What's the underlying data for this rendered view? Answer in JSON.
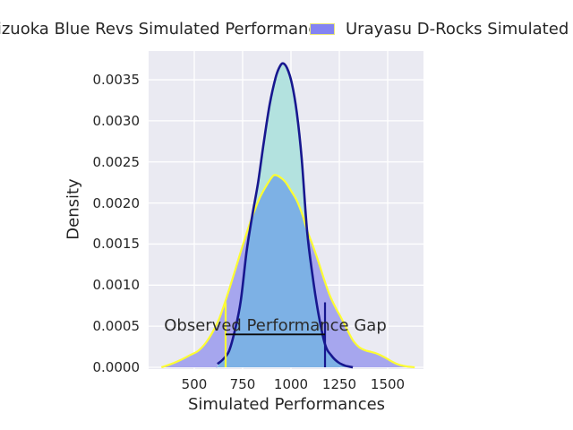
{
  "figure": {
    "background": "#ffffff",
    "plot_background": "#eaeaf2",
    "grid_color": "#ffffff",
    "text_color": "#262626"
  },
  "legend": {
    "entries": [
      {
        "label": "Shizuoka Blue Revs Simulated Performances",
        "swatch_fill": "#b3e2df",
        "swatch_edge": "#17178f"
      },
      {
        "label": "Urayasu D-Rocks Simulated Performances",
        "swatch_fill": "#8383f2",
        "swatch_edge": "#ebe87e"
      }
    ]
  },
  "axes": {
    "xlabel": "Simulated Performances",
    "ylabel": "Density",
    "x_tick_labels": [
      "500",
      "750",
      "1000",
      "1250",
      "1500"
    ],
    "y_tick_labels": [
      "0.0000",
      "0.0005",
      "0.0010",
      "0.0015",
      "0.0020",
      "0.0025",
      "0.0030",
      "0.0035"
    ]
  },
  "chart_data": {
    "type": "area",
    "subtype": "kde-density",
    "title": "",
    "xlabel": "Simulated Performances",
    "ylabel": "Density",
    "xlim": [
      265,
      1685
    ],
    "ylim": [
      0,
      0.00385
    ],
    "x_ticks": [
      500,
      750,
      1000,
      1250,
      1500
    ],
    "y_ticks": [
      0.0,
      0.0005,
      0.001,
      0.0015,
      0.002,
      0.0025,
      0.003,
      0.0035
    ],
    "grid": true,
    "legend_position": "top-outside",
    "series": [
      {
        "name": "Shizuoka Blue Revs Simulated Performances",
        "line_color": "#17178f",
        "fill_color": "#b3e2df",
        "line_width": 2.6,
        "points": [
          [
            620,
            4e-05
          ],
          [
            650,
            0.0001
          ],
          [
            680,
            0.0002
          ],
          [
            710,
            0.00045
          ],
          [
            740,
            0.0008
          ],
          [
            770,
            0.0014
          ],
          [
            800,
            0.00185
          ],
          [
            830,
            0.00225
          ],
          [
            860,
            0.00275
          ],
          [
            890,
            0.0032
          ],
          [
            920,
            0.00352
          ],
          [
            940,
            0.00365
          ],
          [
            958,
            0.0037
          ],
          [
            980,
            0.00364
          ],
          [
            1005,
            0.00345
          ],
          [
            1030,
            0.0031
          ],
          [
            1055,
            0.00255
          ],
          [
            1083,
            0.00167
          ],
          [
            1110,
            0.00114
          ],
          [
            1140,
            0.00068
          ],
          [
            1176,
            0.00028
          ],
          [
            1210,
            0.00014
          ],
          [
            1245,
            6e-05
          ],
          [
            1280,
            2e-05
          ],
          [
            1320,
            0
          ]
        ]
      },
      {
        "name": "Urayasu D-Rocks Simulated Performances",
        "line_color": "#fdfd32",
        "fill_color": "#a6a6ee",
        "line_width": 2.2,
        "points": [
          [
            330,
            0
          ],
          [
            380,
            4e-05
          ],
          [
            430,
            9e-05
          ],
          [
            480,
            0.00015
          ],
          [
            520,
            0.0002
          ],
          [
            560,
            0.0003
          ],
          [
            600,
            0.00045
          ],
          [
            630,
            0.0006
          ],
          [
            660,
            0.0008
          ],
          [
            690,
            0.00102
          ],
          [
            720,
            0.00125
          ],
          [
            750,
            0.00148
          ],
          [
            780,
            0.0017
          ],
          [
            810,
            0.0019
          ],
          [
            840,
            0.00207
          ],
          [
            870,
            0.0022
          ],
          [
            900,
            0.00231
          ],
          [
            917,
            0.00234
          ],
          [
            940,
            0.00232
          ],
          [
            970,
            0.00226
          ],
          [
            1000,
            0.00215
          ],
          [
            1030,
            0.00203
          ],
          [
            1060,
            0.00185
          ],
          [
            1083,
            0.00167
          ],
          [
            1110,
            0.0015
          ],
          [
            1140,
            0.0013
          ],
          [
            1170,
            0.00108
          ],
          [
            1200,
            0.00088
          ],
          [
            1230,
            0.00073
          ],
          [
            1260,
            0.0006
          ],
          [
            1290,
            0.00046
          ],
          [
            1320,
            0.00033
          ],
          [
            1350,
            0.00025
          ],
          [
            1380,
            0.00021
          ],
          [
            1410,
            0.00019
          ],
          [
            1440,
            0.00017
          ],
          [
            1470,
            0.00014
          ],
          [
            1500,
            0.0001
          ],
          [
            1530,
            6e-05
          ],
          [
            1560,
            3e-05
          ],
          [
            1600,
            1e-05
          ],
          [
            1640,
            0
          ]
        ]
      }
    ],
    "overlap_fill_color": "#7db1e5",
    "markers": {
      "vlines": [
        {
          "x": 662,
          "ymin": 0,
          "ymax": 0.00079,
          "color": "#fdfd32",
          "meaning": "Urayasu D-Rocks observed performance"
        },
        {
          "x": 1176,
          "ymin": 0,
          "ymax": 0.00079,
          "color": "#17178f",
          "meaning": "Shizuoka Blue Revs observed performance"
        }
      ],
      "gap_line": {
        "x1": 662,
        "x2": 1176,
        "y": 0.0004,
        "color": "#0a0a0a"
      },
      "annotation": {
        "text": "Observed Performance Gap",
        "x": 919,
        "y": 0.00047,
        "color": "#2b2b2b"
      }
    }
  }
}
